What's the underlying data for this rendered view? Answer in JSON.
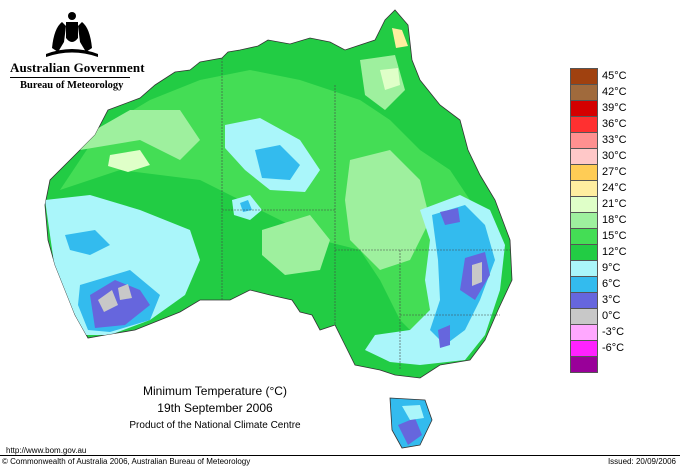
{
  "header": {
    "government": "Australian Government",
    "bureau": "Bureau of Meteorology"
  },
  "legend": {
    "items": [
      {
        "label": "45°C",
        "color": "#a0410f"
      },
      {
        "label": "42°C",
        "color": "#a06a3c"
      },
      {
        "label": "39°C",
        "color": "#d40000"
      },
      {
        "label": "36°C",
        "color": "#ff3030"
      },
      {
        "label": "33°C",
        "color": "#ff9090"
      },
      {
        "label": "30°C",
        "color": "#ffc8c8"
      },
      {
        "label": "27°C",
        "color": "#ffcc55"
      },
      {
        "label": "24°C",
        "color": "#ffeea0"
      },
      {
        "label": "21°C",
        "color": "#dfffc8"
      },
      {
        "label": "18°C",
        "color": "#9ef09e"
      },
      {
        "label": "15°C",
        "color": "#44dd55"
      },
      {
        "label": "12°C",
        "color": "#22cc44"
      },
      {
        "label": "9°C",
        "color": "#aaf6fa"
      },
      {
        "label": "6°C",
        "color": "#33bbee"
      },
      {
        "label": "3°C",
        "color": "#6666dd"
      },
      {
        "label": "0°C",
        "color": "#c8c8c8"
      },
      {
        "label": "-3°C",
        "color": "#ffa8ff"
      },
      {
        "label": "-6°C",
        "color": "#ff22ff"
      },
      {
        "label": "",
        "color": "#990099"
      }
    ]
  },
  "map": {
    "title": "Minimum Temperature (°C)",
    "date": "19th September 2006",
    "product": "Product of the National Climate Centre"
  },
  "footer": {
    "url": "http://www.bom.gov.au",
    "copyright": "© Commonwealth of Australia 2006, Australian Bureau of Meteorology",
    "issued": "Issued: 20/09/2006"
  }
}
